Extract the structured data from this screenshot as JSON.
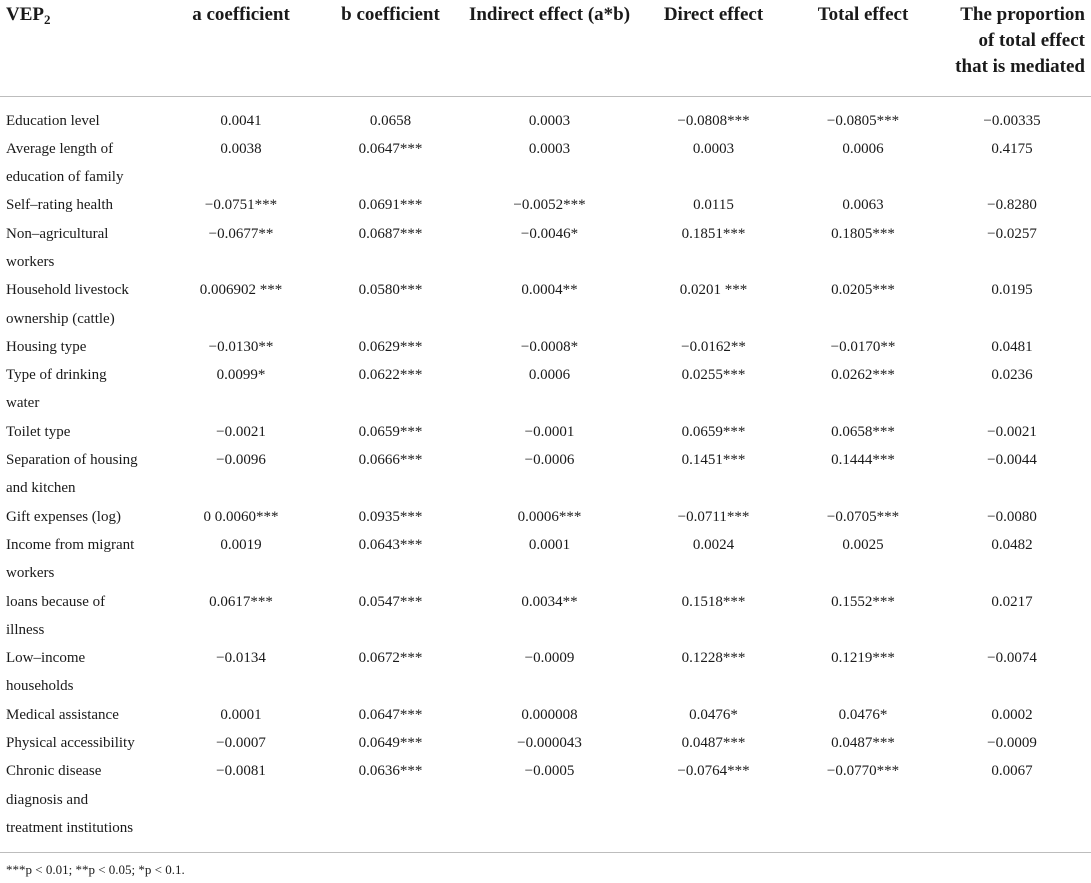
{
  "table": {
    "headers": {
      "variable": "VEP",
      "variable_sub": "2",
      "a": "a coefficient",
      "b": "b coefficient",
      "indirect": "Indirect effect (a*b)",
      "direct": "Direct effect",
      "total": "Total effect",
      "proportion_line1": "The proportion",
      "proportion_line2": "of total effect",
      "proportion_line3": "that is mediated"
    },
    "rows": [
      {
        "var_line1": "Education level",
        "var_line2": "",
        "var_line3": "",
        "a": "0.0041",
        "b": "0.0658",
        "indirect": "0.0003",
        "direct": "−0.0808***",
        "total": "−0.0805***",
        "proportion": "−0.00335"
      },
      {
        "var_line1": "Average length of",
        "var_line2": "education of family",
        "var_line3": "",
        "a": "0.0038",
        "b": "0.0647***",
        "indirect": "0.0003",
        "direct": "0.0003",
        "total": "0.0006",
        "proportion": "0.4175"
      },
      {
        "var_line1": "Self–rating health",
        "var_line2": "",
        "var_line3": "",
        "a": "−0.0751***",
        "b": "0.0691***",
        "indirect": "−0.0052***",
        "direct": "0.0115",
        "total": "0.0063",
        "proportion": "−0.8280"
      },
      {
        "var_line1": "Non–agricultural",
        "var_line2": "workers",
        "var_line3": "",
        "a": "−0.0677**",
        "b": "0.0687***",
        "indirect": "−0.0046*",
        "direct": "0.1851***",
        "total": "0.1805***",
        "proportion": "−0.0257"
      },
      {
        "var_line1": "Household livestock",
        "var_line2": "ownership (cattle)",
        "var_line3": "",
        "a": "0.006902 ***",
        "b": "0.0580***",
        "indirect": "0.0004**",
        "direct": "0.0201 ***",
        "total": "0.0205***",
        "proportion": "0.0195"
      },
      {
        "var_line1": "Housing type",
        "var_line2": "",
        "var_line3": "",
        "a": "−0.0130**",
        "b": "0.0629***",
        "indirect": "−0.0008*",
        "direct": "−0.0162**",
        "total": "−0.0170**",
        "proportion": "0.0481"
      },
      {
        "var_line1": "Type of drinking",
        "var_line2": "water",
        "var_line3": "",
        "a": "0.0099*",
        "b": "0.0622***",
        "indirect": "0.0006",
        "direct": "0.0255***",
        "total": "0.0262***",
        "proportion": "0.0236"
      },
      {
        "var_line1": "Toilet type",
        "var_line2": "",
        "var_line3": "",
        "a": "−0.0021",
        "b": "0.0659***",
        "indirect": "−0.0001",
        "direct": "0.0659***",
        "total": "0.0658***",
        "proportion": "−0.0021"
      },
      {
        "var_line1": "Separation of housing",
        "var_line2": "and kitchen",
        "var_line3": "",
        "a": "−0.0096",
        "b": "0.0666***",
        "indirect": "−0.0006",
        "direct": "0.1451***",
        "total": "0.1444***",
        "proportion": "−0.0044"
      },
      {
        "var_line1": "Gift expenses (log)",
        "var_line2": "",
        "var_line3": "",
        "a": "0 0.0060***",
        "b": "0.0935***",
        "indirect": "0.0006***",
        "direct": "−0.0711***",
        "total": "−0.0705***",
        "proportion": "−0.0080"
      },
      {
        "var_line1": "Income from migrant",
        "var_line2": "workers",
        "var_line3": "",
        "a": "0.0019",
        "b": "0.0643***",
        "indirect": "0.0001",
        "direct": "0.0024",
        "total": "0.0025",
        "proportion": "0.0482"
      },
      {
        "var_line1": "loans because of",
        "var_line2": "illness",
        "var_line3": "",
        "a": "0.0617***",
        "b": "0.0547***",
        "indirect": "0.0034**",
        "direct": "0.1518***",
        "total": "0.1552***",
        "proportion": "0.0217"
      },
      {
        "var_line1": "Low–income",
        "var_line2": "households",
        "var_line3": "",
        "a": "−0.0134",
        "b": "0.0672***",
        "indirect": "−0.0009",
        "direct": "0.1228***",
        "total": "0.1219***",
        "proportion": "−0.0074"
      },
      {
        "var_line1": "Medical assistance",
        "var_line2": "",
        "var_line3": "",
        "a": "0.0001",
        "b": "0.0647***",
        "indirect": "0.000008",
        "direct": "0.0476*",
        "total": "0.0476*",
        "proportion": "0.0002"
      },
      {
        "var_line1": "Physical accessibility",
        "var_line2": "",
        "var_line3": "",
        "a": "−0.0007",
        "b": "0.0649***",
        "indirect": "−0.000043",
        "direct": "0.0487***",
        "total": "0.0487***",
        "proportion": "−0.0009"
      },
      {
        "var_line1": "Chronic disease",
        "var_line2": "diagnosis and",
        "var_line3": "treatment institutions",
        "a": "−0.0081",
        "b": "0.0636***",
        "indirect": "−0.0005",
        "direct": "−0.0764***",
        "total": "−0.0770***",
        "proportion": "0.0067"
      }
    ]
  },
  "footnote": "***p < 0.01; **p < 0.05; *p < 0.1."
}
